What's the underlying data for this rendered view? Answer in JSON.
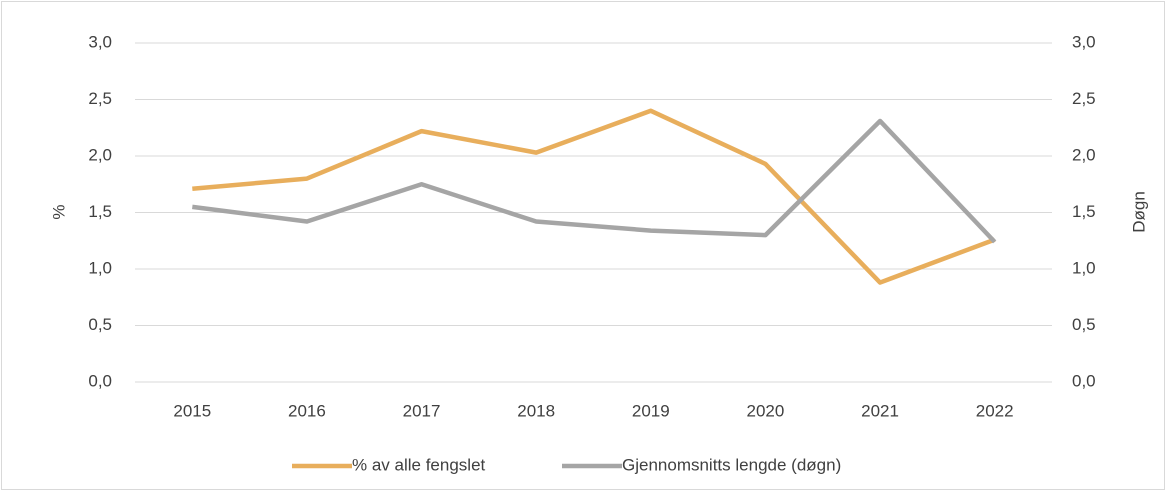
{
  "chart_data": {
    "type": "line",
    "categories": [
      "2015",
      "2016",
      "2017",
      "2018",
      "2019",
      "2020",
      "2021",
      "2022"
    ],
    "series": [
      {
        "name": "% av alle fengslet",
        "color": "#e8ae5c",
        "values": [
          1.71,
          1.8,
          2.22,
          2.03,
          2.4,
          1.93,
          0.88,
          1.26
        ]
      },
      {
        "name": "Gjennomsnitts lengde (døgn)",
        "color": "#a5a5a5",
        "axis": "y2",
        "values": [
          1.55,
          1.42,
          1.75,
          1.42,
          1.34,
          1.3,
          2.31,
          1.24
        ]
      }
    ],
    "ylabel": "%",
    "y2label": "Døgn",
    "ylim": [
      0,
      3
    ],
    "y2lim": [
      0,
      3
    ],
    "yticks": [
      {
        "value": 0,
        "label": "0,0"
      },
      {
        "value": 0.5,
        "label": "0,5"
      },
      {
        "value": 1,
        "label": "1,0"
      },
      {
        "value": 1.5,
        "label": "1,5"
      },
      {
        "value": 2,
        "label": "2,0"
      },
      {
        "value": 2.5,
        "label": "2,5"
      },
      {
        "value": 3,
        "label": "3,0"
      }
    ],
    "y2ticks": [
      {
        "value": 0,
        "label": "0,0"
      },
      {
        "value": 0.5,
        "label": "0,5"
      },
      {
        "value": 1,
        "label": "1,0"
      },
      {
        "value": 1.5,
        "label": "1,5"
      },
      {
        "value": 2,
        "label": "2,0"
      },
      {
        "value": 2.5,
        "label": "2,5"
      },
      {
        "value": 3,
        "label": "3,0"
      }
    ],
    "grid": true,
    "legend": "bottom"
  }
}
